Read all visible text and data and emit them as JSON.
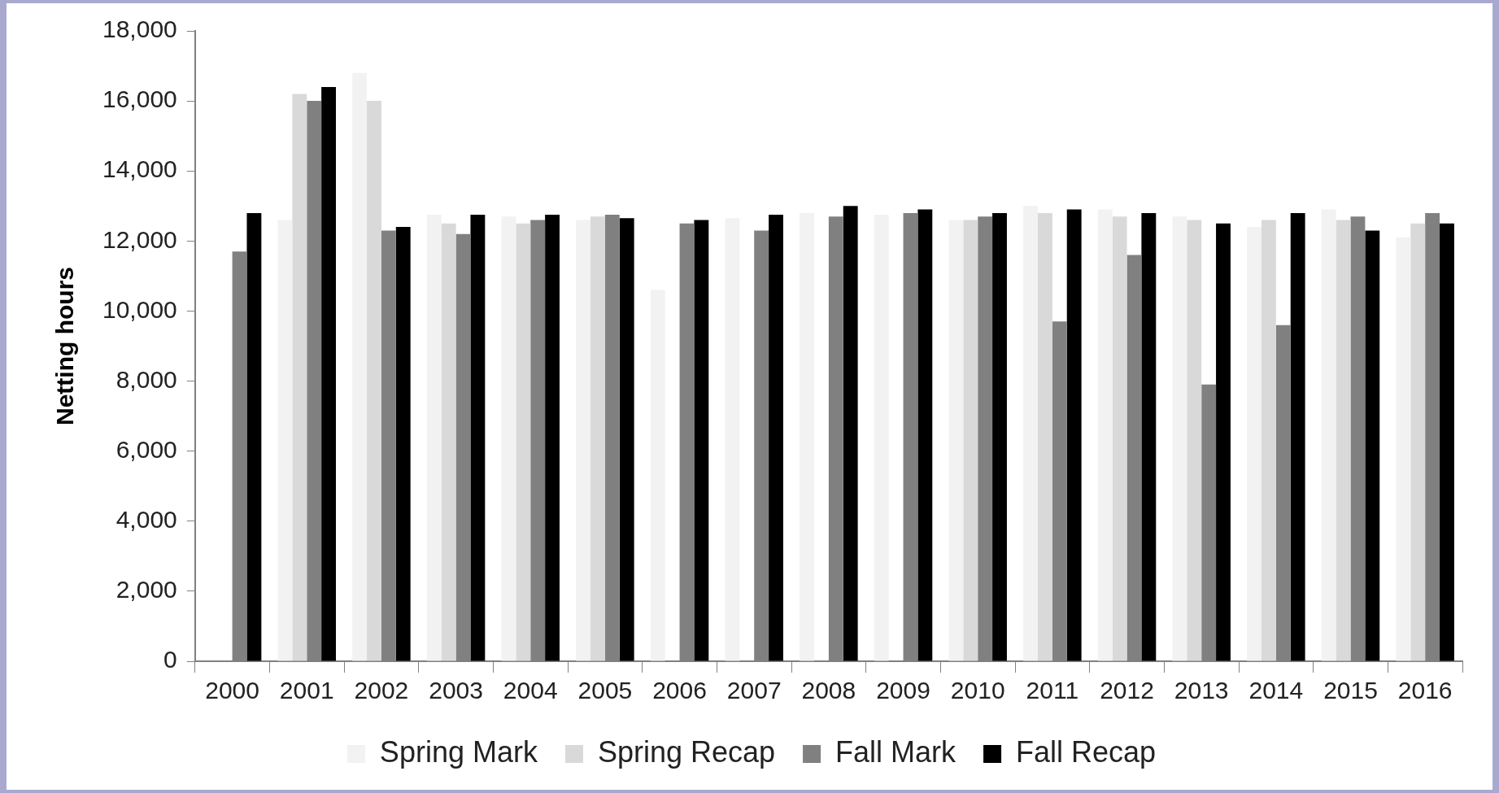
{
  "chart_data": {
    "type": "bar",
    "ylabel": "Netting hours",
    "categories": [
      "2000",
      "2001",
      "2002",
      "2003",
      "2004",
      "2005",
      "2006",
      "2007",
      "2008",
      "2009",
      "2010",
      "2011",
      "2012",
      "2013",
      "2014",
      "2015",
      "2016"
    ],
    "series": [
      {
        "name": "Spring Mark",
        "color": "#f2f2f2",
        "values": [
          null,
          12600,
          16800,
          12750,
          12700,
          12600,
          10600,
          12650,
          12800,
          12750,
          12600,
          13000,
          12900,
          12700,
          12400,
          12900,
          12100
        ]
      },
      {
        "name": "Spring Recap",
        "color": "#d9d9d9",
        "values": [
          null,
          16200,
          16000,
          12500,
          12500,
          12700,
          null,
          null,
          null,
          null,
          12600,
          12800,
          12700,
          12600,
          12600,
          12600,
          12500
        ]
      },
      {
        "name": "Fall Mark",
        "color": "#808080",
        "values": [
          11700,
          16000,
          12300,
          12200,
          12600,
          12750,
          12500,
          12300,
          12700,
          12800,
          12700,
          9700,
          11600,
          7900,
          9600,
          12700,
          12800
        ]
      },
      {
        "name": "Fall Recap",
        "color": "#000000",
        "values": [
          12800,
          16400,
          12400,
          12750,
          12750,
          12650,
          12600,
          12750,
          13000,
          12900,
          12800,
          12900,
          12800,
          12500,
          12800,
          12300,
          12500
        ]
      }
    ],
    "ylim": [
      0,
      18000
    ],
    "yticks": [
      0,
      {
        "value": 2000,
        "label": "2,000"
      },
      {
        "value": 4000,
        "label": "4,000"
      },
      {
        "value": 6000,
        "label": "6,000"
      },
      {
        "value": 8000,
        "label": "8,000"
      },
      {
        "value": 10000,
        "label": "10,000"
      },
      {
        "value": 12000,
        "label": "12,000"
      },
      {
        "value": 14000,
        "label": "14,000"
      },
      {
        "value": 16000,
        "label": "16,000"
      },
      {
        "value": 18000,
        "label": "18,000"
      }
    ],
    "grid": false,
    "legend": "bottom"
  }
}
